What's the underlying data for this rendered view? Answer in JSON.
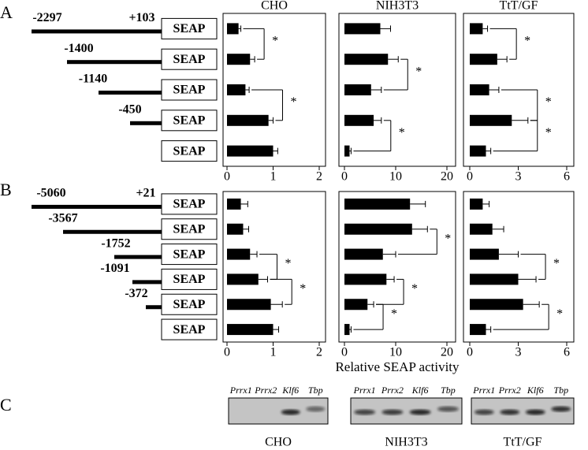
{
  "panel_labels": [
    "A",
    "B",
    "C"
  ],
  "reporter": "SEAP",
  "promoters": [
    {
      "starts": [
        "-2297",
        "-1400",
        "-1140",
        "-450"
      ],
      "end": "+103"
    },
    {
      "starts": [
        "-5060",
        "-3567",
        "-1752",
        "-1091",
        "-372"
      ],
      "end": "+21"
    }
  ],
  "chart_data": [
    {
      "type": "bar",
      "title": "CHO",
      "color": "#000000",
      "xlim": [
        0,
        2
      ],
      "xticks": [
        0,
        1,
        2
      ],
      "values": [
        0.25,
        0.5,
        0.4,
        0.9,
        1.0
      ],
      "errors": [
        0.05,
        0.1,
        0.08,
        0.1,
        0.1
      ],
      "brackets": [
        {
          "rows": [
            0,
            1
          ],
          "label": "*"
        },
        {
          "rows": [
            2,
            3
          ],
          "label": "*"
        }
      ]
    },
    {
      "type": "bar",
      "title": "NIH3T3",
      "color": "#000000",
      "xlim": [
        0,
        20
      ],
      "xticks": [
        0,
        10,
        20
      ],
      "values": [
        7,
        8.5,
        5.2,
        5.7,
        1
      ],
      "errors": [
        2,
        2,
        2,
        1.5,
        0.3
      ],
      "brackets": [
        {
          "rows": [
            1,
            2
          ],
          "label": "*"
        },
        {
          "rows": [
            3,
            4
          ],
          "label": "*"
        }
      ]
    },
    {
      "type": "bar",
      "title": "TtT/GF",
      "color": "#000000",
      "xlim": [
        0,
        6
      ],
      "xticks": [
        0,
        3,
        6
      ],
      "values": [
        0.8,
        1.7,
        1.2,
        2.6,
        1.0
      ],
      "errors": [
        0.3,
        0.6,
        0.6,
        1.0,
        0.3
      ],
      "brackets": [
        {
          "rows": [
            0,
            1
          ],
          "label": "*"
        },
        {
          "rows": [
            2,
            3
          ],
          "label": "*"
        },
        {
          "rows": [
            3,
            4
          ],
          "label": "*"
        }
      ]
    },
    {
      "type": "bar",
      "color": "#000000",
      "xlim": [
        0,
        2
      ],
      "xticks": [
        0,
        1,
        2
      ],
      "values": [
        0.3,
        0.35,
        0.5,
        0.68,
        0.95,
        1.0
      ],
      "errors": [
        0.15,
        0.12,
        0.15,
        0.2,
        0.25,
        0.12
      ],
      "brackets": [
        {
          "rows": [
            2,
            3
          ],
          "label": "*"
        },
        {
          "rows": [
            3,
            4
          ],
          "label": "*"
        }
      ]
    },
    {
      "type": "bar",
      "xlabel": "Relative SEAP activity",
      "color": "#000000",
      "xlim": [
        0,
        20
      ],
      "xticks": [
        0,
        10,
        20
      ],
      "values": [
        12.8,
        13.2,
        7.5,
        8.2,
        4.5,
        1.0
      ],
      "errors": [
        3,
        3,
        2.5,
        1.5,
        1.2,
        0.3
      ],
      "brackets": [
        {
          "rows": [
            1,
            2
          ],
          "label": "*"
        },
        {
          "rows": [
            3,
            4
          ],
          "label": "*"
        },
        {
          "rows": [
            4,
            5
          ],
          "label": "*"
        }
      ]
    },
    {
      "type": "bar",
      "color": "#000000",
      "xlim": [
        0,
        6
      ],
      "xticks": [
        0,
        3,
        6
      ],
      "values": [
        0.8,
        1.4,
        1.8,
        3.0,
        3.3,
        1.0
      ],
      "errors": [
        0.4,
        0.7,
        1.2,
        1.1,
        1.0,
        0.3
      ],
      "brackets": [
        {
          "rows": [
            2,
            3
          ],
          "label": "*"
        },
        {
          "rows": [
            4,
            5
          ],
          "label": "*"
        }
      ]
    }
  ],
  "gel": {
    "lanes": [
      "Prrx1",
      "Prrx2",
      "Klf6",
      "Tbp"
    ],
    "cell_lines": [
      "CHO",
      "NIH3T3",
      "TtT/GF"
    ]
  }
}
